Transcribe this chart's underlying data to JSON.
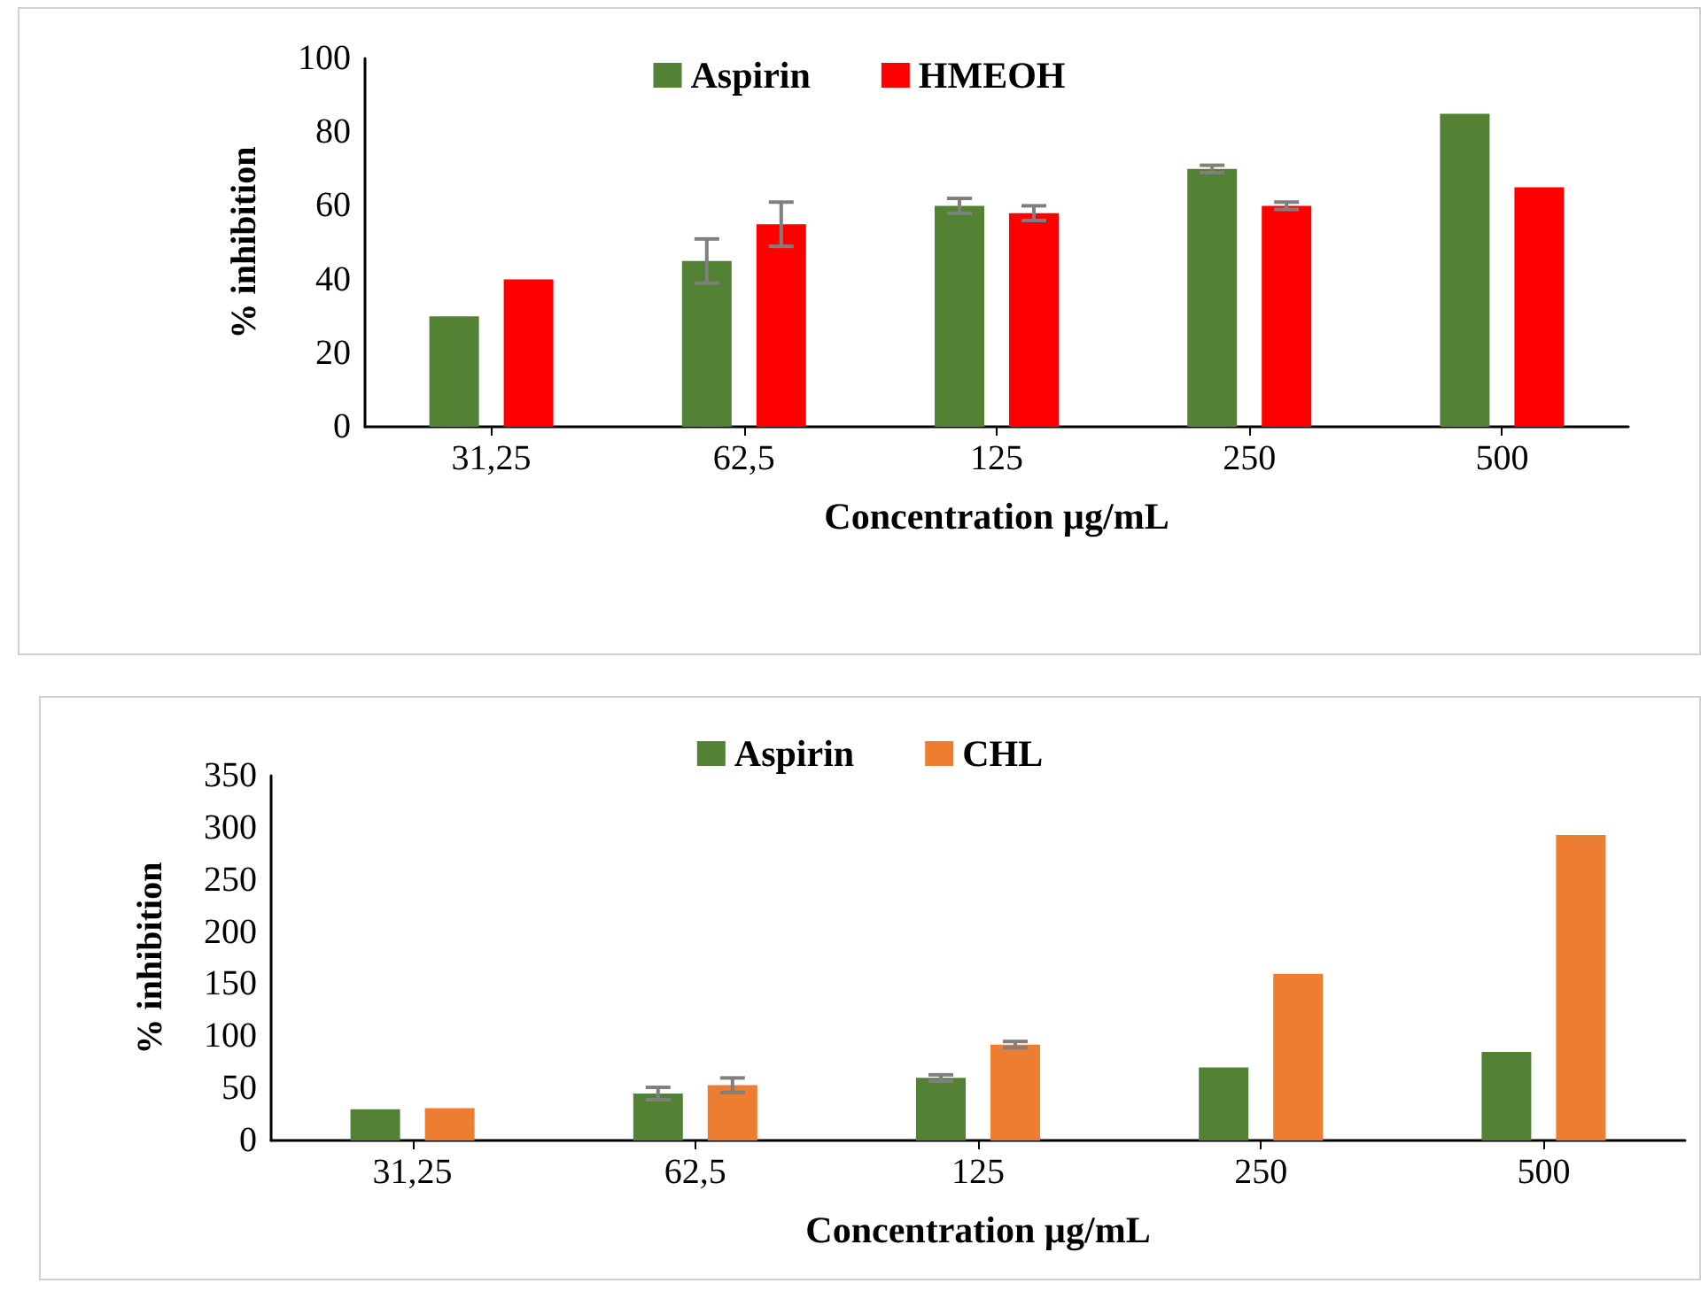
{
  "chart_data": [
    {
      "type": "bar",
      "xlabel": "Concentration µg/mL",
      "ylabel": "% inhibition",
      "categories": [
        "31,25",
        "62,5",
        "125",
        "250",
        "500"
      ],
      "ylim": [
        0,
        100
      ],
      "yticks": [
        0,
        20,
        40,
        60,
        80,
        100
      ],
      "legend": "top",
      "grid": false,
      "series": [
        {
          "name": "Aspirin",
          "color": "#548235",
          "values": [
            30,
            45,
            60,
            70,
            85
          ],
          "errors": [
            null,
            6,
            2,
            1,
            null
          ]
        },
        {
          "name": "HMEOH",
          "color": "#ff0000",
          "values": [
            40,
            55,
            58,
            60,
            65
          ],
          "errors": [
            null,
            6,
            2,
            1,
            null
          ]
        }
      ]
    },
    {
      "type": "bar",
      "xlabel": "Concentration µg/mL",
      "ylabel": "% inhibition",
      "categories": [
        "31,25",
        "62,5",
        "125",
        "250",
        "500"
      ],
      "ylim": [
        0,
        350
      ],
      "yticks": [
        0,
        50,
        100,
        150,
        200,
        250,
        300,
        350
      ],
      "legend": "top",
      "grid": false,
      "series": [
        {
          "name": "Aspirin",
          "color": "#548235",
          "values": [
            30,
            45,
            60,
            70,
            85
          ],
          "errors": [
            null,
            6,
            3,
            null,
            null
          ]
        },
        {
          "name": "CHL",
          "color": "#ed7d31",
          "values": [
            31,
            53,
            92,
            160,
            293
          ],
          "errors": [
            null,
            7,
            3,
            null,
            null
          ]
        }
      ]
    }
  ]
}
